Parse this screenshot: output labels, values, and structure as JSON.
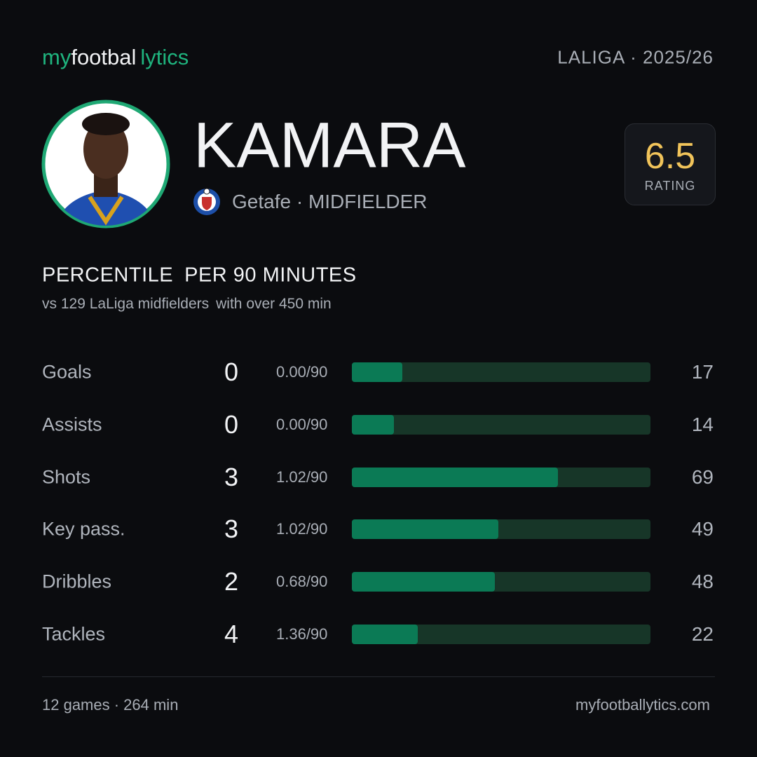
{
  "header": {
    "logo": [
      "my",
      "footbal",
      "lytics"
    ],
    "league": "LALIGA · 2025/26"
  },
  "player": {
    "name": "KAMARA",
    "club_role": "Getafe · MIDFIELDER",
    "rating": "6.5",
    "rating_label": "RATING"
  },
  "section": {
    "title": [
      "PERCENTILE",
      "PER 90 MINUTES"
    ],
    "subtitle": [
      "vs 129 LaLiga midfielders",
      "with over 450 min"
    ]
  },
  "stats": [
    {
      "label": "Goals",
      "total": 0,
      "per90": "0.00/90",
      "percentile": 17
    },
    {
      "label": "Assists",
      "total": 0,
      "per90": "0.00/90",
      "percentile": 14
    },
    {
      "label": "Shots",
      "total": 3,
      "per90": "1.02/90",
      "percentile": 69
    },
    {
      "label": "Key pass.",
      "total": 3,
      "per90": "1.02/90",
      "percentile": 49
    },
    {
      "label": "Dribbles",
      "total": 2,
      "per90": "0.68/90",
      "percentile": 48
    },
    {
      "label": "Tackles",
      "total": 4,
      "per90": "1.36/90",
      "percentile": 22
    }
  ],
  "footer": {
    "summary": "12 games · 264 min",
    "site": "myfootballytics.com"
  }
}
